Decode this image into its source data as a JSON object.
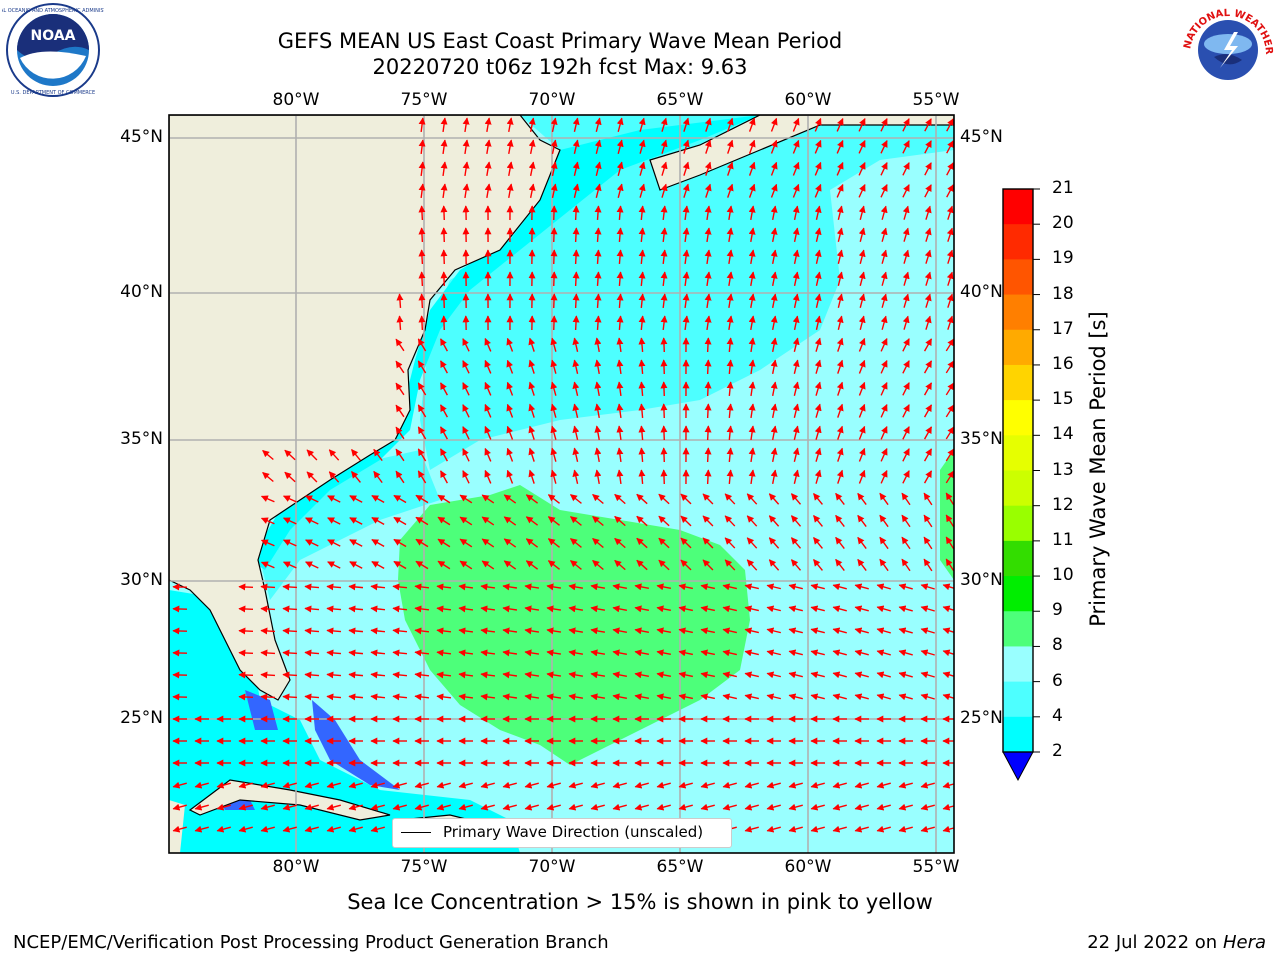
{
  "title": {
    "line1": "GEFS MEAN US East Coast Primary Wave Mean Period",
    "line2": "20220720 t06z 192h fcst   Max: 9.63"
  },
  "logos": {
    "left": {
      "name": "NOAA",
      "ring_text": "NATIONAL OCEANIC AND ATMOSPHERIC ADMINISTRATION · U.S. DEPARTMENT OF COMMERCE"
    },
    "right": {
      "name": "NATIONAL WEATHER SERVICE"
    }
  },
  "map": {
    "lon_labels": [
      "80°W",
      "75°W",
      "70°W",
      "65°W",
      "60°W",
      "55°W"
    ],
    "lat_labels": [
      "45°N",
      "40°N",
      "35°N",
      "30°N",
      "25°N"
    ],
    "colors": {
      "land": "#efeedc",
      "ocean_4_6": "#00ffff",
      "ocean_6_8": "#4dffff",
      "ocean_8_9": "#99ffff",
      "ocean_9_10": "#4dff7a",
      "ocean_2_4": "#3366ff",
      "arrow": "#ff0000",
      "grid": "#b0b0b0"
    },
    "legend_label": "Primary Wave Direction (unscaled)"
  },
  "colorbar": {
    "label": "Primary Wave Mean Period [s]",
    "ticks": [
      "21",
      "20",
      "19",
      "18",
      "17",
      "16",
      "15",
      "14",
      "13",
      "12",
      "11",
      "10",
      "9",
      "8",
      "6",
      "4",
      "2"
    ],
    "colors": [
      "#ff0000",
      "#ff2a00",
      "#ff5500",
      "#ff7f00",
      "#ffaa00",
      "#ffd400",
      "#ffff00",
      "#e6ff00",
      "#ccff00",
      "#99ff00",
      "#33dd00",
      "#00ee00",
      "#4dff7a",
      "#99ffff",
      "#4dffff",
      "#00ffff",
      "#0080ff",
      "#0000ff"
    ]
  },
  "caption": "Sea Ice Concentration > 15% is shown in pink to yellow",
  "footer": {
    "left": "NCEP/EMC/Verification Post Processing Product Generation Branch",
    "right_date": "22 Jul 2022 on ",
    "right_machine": "Hera"
  },
  "chart_data": {
    "type": "heatmap",
    "title": "GEFS MEAN US East Coast Primary Wave Mean Period",
    "subtitle": "20220720 t06z 192h fcst   Max: 9.63",
    "x_range_lon": [
      -85,
      -54.4
    ],
    "y_range_lat": [
      20.5,
      45.9
    ],
    "grid": true,
    "colorbar_ticks": [
      2,
      4,
      6,
      8,
      9,
      10,
      11,
      12,
      13,
      14,
      15,
      16,
      17,
      18,
      19,
      20,
      21
    ],
    "max_value": 9.63,
    "unit": "s"
  }
}
